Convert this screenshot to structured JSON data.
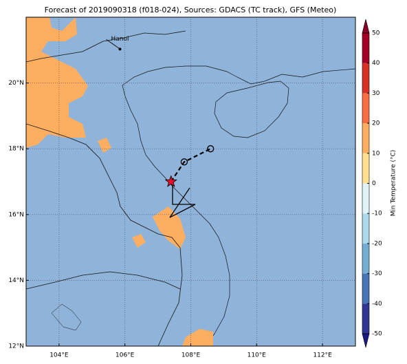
{
  "title": "Forecast of 2019090318 (f018-024), Sources: GDACS (TC track), GFS (Meteo)",
  "map": {
    "lon_range": [
      103,
      113
    ],
    "lat_range": [
      12,
      22
    ],
    "lon_ticks": [
      {
        "value": 104,
        "label": "104°E"
      },
      {
        "value": 106,
        "label": "106°E"
      },
      {
        "value": 108,
        "label": "108°E"
      },
      {
        "value": 110,
        "label": "110°E"
      },
      {
        "value": 112,
        "label": "112°E"
      }
    ],
    "lat_ticks": [
      {
        "value": 12,
        "label": "12°N"
      },
      {
        "value": 14,
        "label": "14°N"
      },
      {
        "value": 16,
        "label": "16°N"
      },
      {
        "value": 18,
        "label": "18°N"
      },
      {
        "value": 20,
        "label": "20°N"
      }
    ],
    "grid": true,
    "city": {
      "name": "Hanoi",
      "lon": 105.85,
      "lat": 21.03
    },
    "track": [
      {
        "lon": 107.4,
        "lat": 17.0,
        "marker": "star"
      },
      {
        "lon": 107.8,
        "lat": 17.6,
        "marker": "circle"
      },
      {
        "lon": 108.6,
        "lat": 18.0,
        "marker": "circle"
      }
    ]
  },
  "colorbar": {
    "label": "Min Temperature (°C)",
    "ticks": [
      -50,
      -40,
      -30,
      -20,
      -10,
      0,
      10,
      20,
      30,
      40,
      50
    ],
    "colors": [
      "#313695",
      "#4575b4",
      "#74add1",
      "#abd9e9",
      "#e0f3f8",
      "#fee090",
      "#fdae61",
      "#f46d43",
      "#d73027",
      "#a50026"
    ],
    "under_color": "#1c1c80",
    "over_color": "#8a0026"
  }
}
